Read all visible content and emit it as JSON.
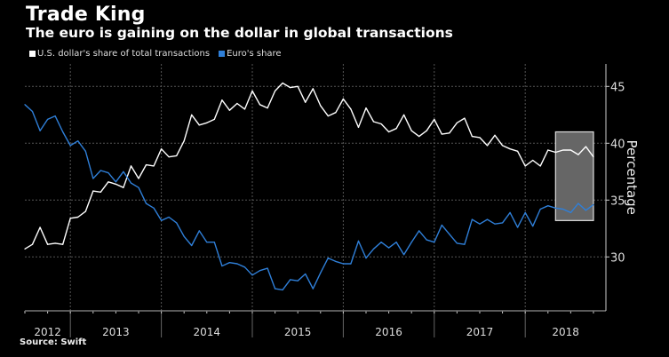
{
  "title": "Trade King",
  "subtitle": "The euro is gaining on the dollar in global transactions",
  "source": "Source:  Swift",
  "colors": {
    "usd": "#ffffff",
    "euro": "#2f7fd8",
    "highlight": "#666666",
    "background": "#000000"
  },
  "chart_data": {
    "type": "line",
    "ylabel": "Percentage",
    "ylim": [
      25.5,
      47
    ],
    "yticks": [
      30,
      35,
      40,
      45
    ],
    "x_start": "2012-07",
    "x_end": "2018-10",
    "x_frequency": "monthly",
    "xtick_labels": [
      "2012",
      "2013",
      "2014",
      "2015",
      "2016",
      "2017",
      "2018"
    ],
    "grid": true,
    "legend_position": "top-left",
    "highlight": {
      "from": "2018-05",
      "to": "2018-10",
      "y_range": [
        33.2,
        41.0
      ]
    },
    "series": [
      {
        "name": "U.S. dollar's share of total transactions",
        "color": "#ffffff",
        "values": [
          30.7,
          31.1,
          32.6,
          31.1,
          31.2,
          31.1,
          33.4,
          33.5,
          34.0,
          35.8,
          35.7,
          36.6,
          36.4,
          36.1,
          38.0,
          36.9,
          38.1,
          38.0,
          39.5,
          38.8,
          38.9,
          40.2,
          42.5,
          41.6,
          41.8,
          42.1,
          43.8,
          42.9,
          43.5,
          43.0,
          44.6,
          43.4,
          43.1,
          44.6,
          45.3,
          44.9,
          45.0,
          43.6,
          44.8,
          43.3,
          42.4,
          42.7,
          43.9,
          43.0,
          41.4,
          43.1,
          41.9,
          41.7,
          41.0,
          41.3,
          42.5,
          41.1,
          40.6,
          41.1,
          42.1,
          40.8,
          40.9,
          41.8,
          42.2,
          40.6,
          40.5,
          39.8,
          40.7,
          39.8,
          39.5,
          39.3,
          38.0,
          38.5,
          38.0,
          39.4,
          39.2,
          39.4,
          39.4,
          39.0,
          39.7,
          38.8
        ]
      },
      {
        "name": "Euro's share",
        "color": "#2f7fd8",
        "values": [
          43.4,
          42.8,
          41.1,
          42.1,
          42.4,
          41.0,
          39.8,
          40.2,
          39.3,
          36.9,
          37.6,
          37.4,
          36.6,
          37.5,
          36.5,
          36.1,
          34.7,
          34.3,
          33.2,
          33.5,
          33.0,
          31.8,
          31.0,
          32.3,
          31.3,
          31.3,
          29.2,
          29.5,
          29.4,
          29.1,
          28.4,
          28.8,
          29.0,
          27.2,
          27.1,
          28.0,
          27.9,
          28.5,
          27.2,
          28.6,
          29.9,
          29.6,
          29.4,
          29.4,
          31.4,
          29.9,
          30.7,
          31.3,
          30.8,
          31.3,
          30.2,
          31.3,
          32.3,
          31.5,
          31.3,
          32.8,
          32.0,
          31.2,
          31.1,
          33.3,
          32.9,
          33.3,
          32.9,
          33.0,
          33.9,
          32.6,
          33.9,
          32.7,
          34.2,
          34.5,
          34.3,
          34.2,
          33.9,
          34.7,
          34.1,
          34.6
        ]
      }
    ]
  }
}
